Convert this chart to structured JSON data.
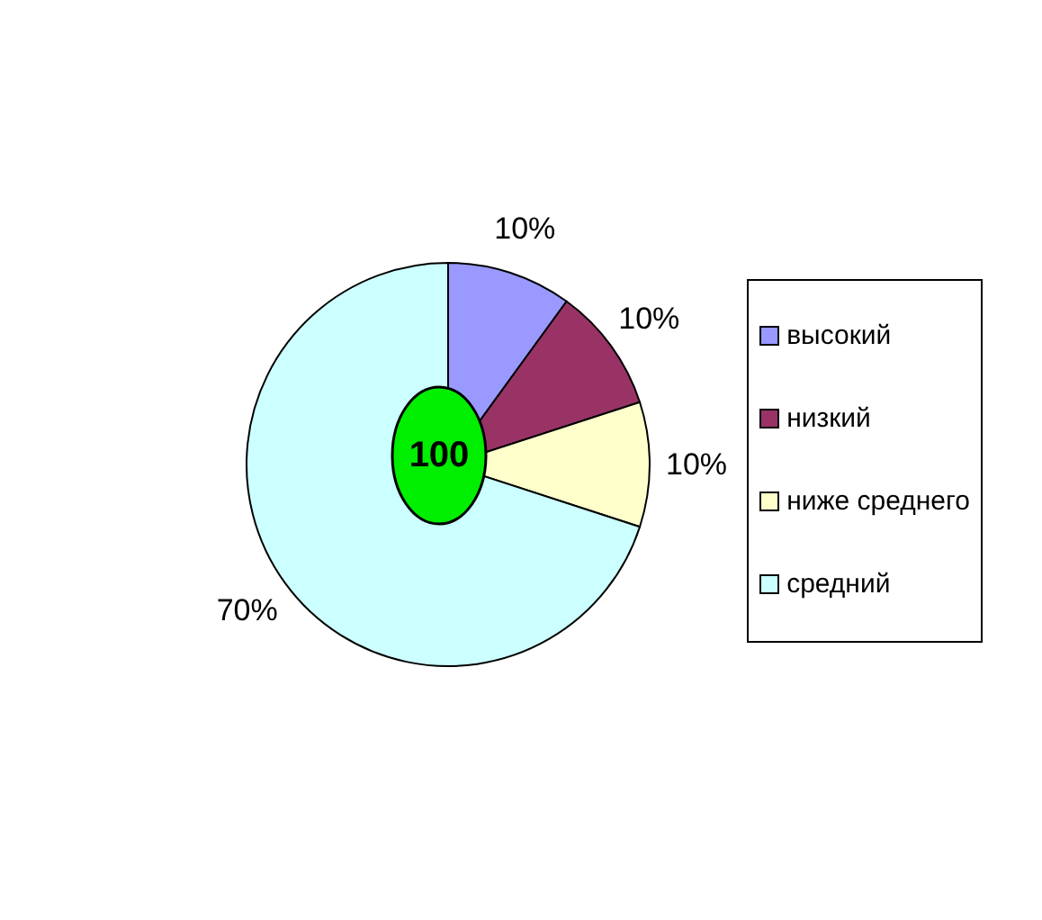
{
  "chart_data": {
    "type": "pie",
    "categories": [
      "высокий",
      "низкий",
      "ниже среднего",
      "средний"
    ],
    "values": [
      10,
      10,
      10,
      70
    ],
    "colors": [
      "#9999ff",
      "#993366",
      "#ffffcc",
      "#ccffff"
    ],
    "value_labels": [
      "10%",
      "10%",
      "10%",
      "70%"
    ],
    "annotations": [
      "100"
    ],
    "legend": "right"
  }
}
